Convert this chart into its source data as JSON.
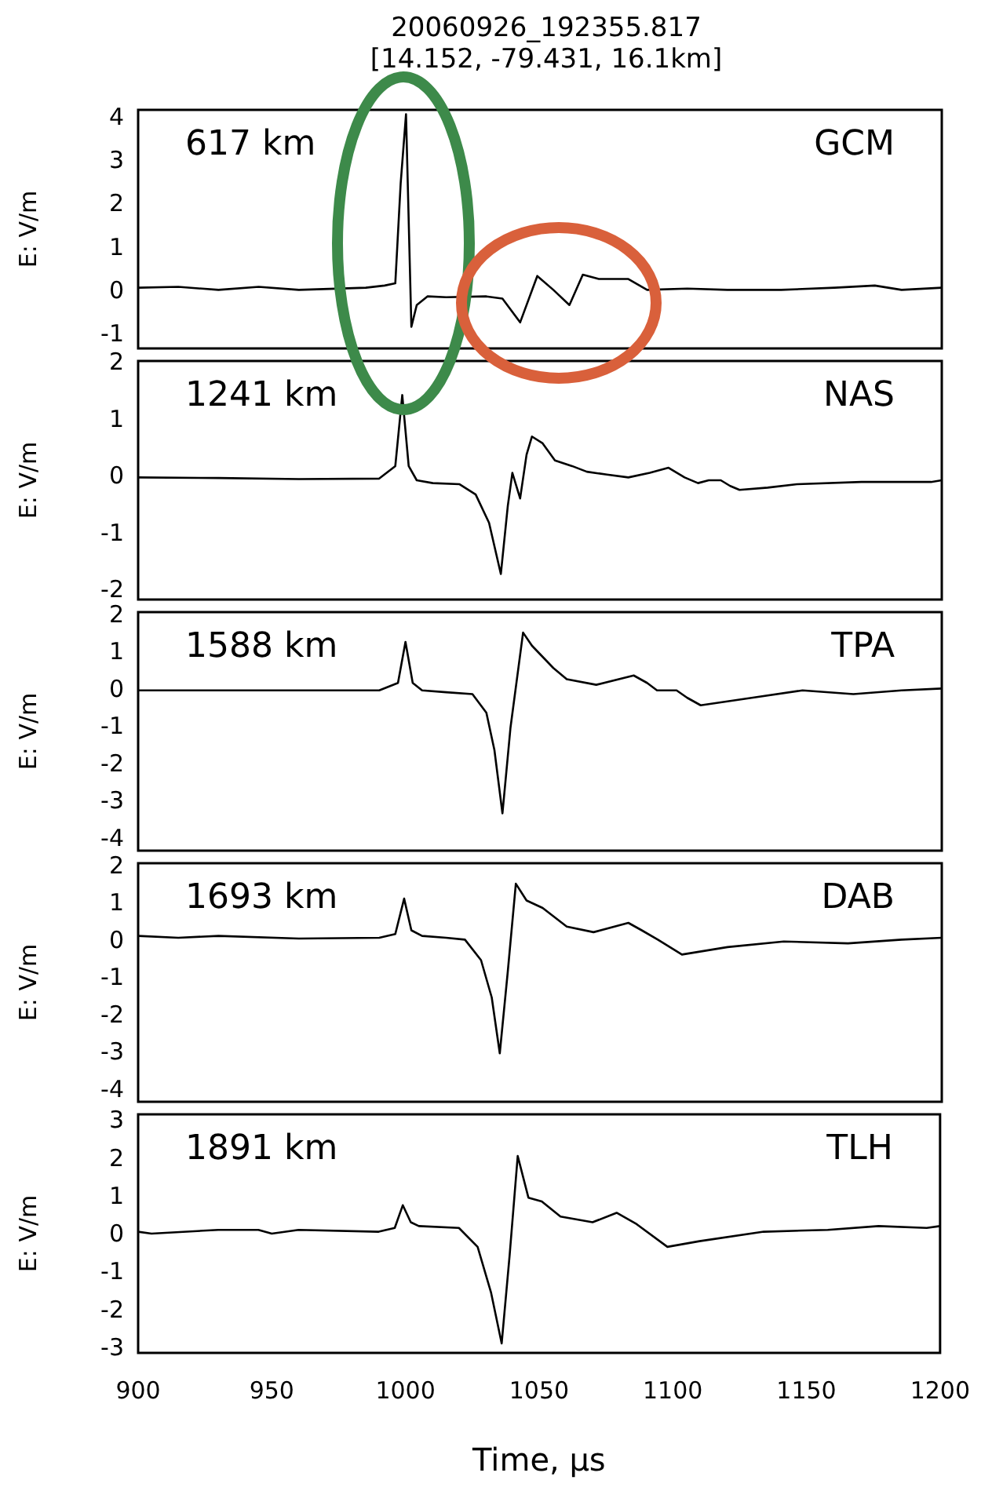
{
  "chart_data": [
    {
      "type": "line",
      "title": "20060926_192355.817",
      "subtitle": "[14.152, -79.431, 16.1km]",
      "ylabel": "E: V/m",
      "annotations": [
        "617 km",
        "GCM"
      ],
      "xlim": [
        900,
        1200
      ],
      "xticks": [
        900,
        950,
        1000,
        1050,
        1100,
        1150,
        1200
      ],
      "ylim": [
        -1.3,
        4.2
      ],
      "yticks": [
        -1,
        0,
        1,
        2,
        3,
        4
      ],
      "tick_labels": "y",
      "grid": false,
      "legend": false,
      "series": [
        {
          "color": "#000000",
          "x": [
            900,
            915,
            930,
            945,
            960,
            985,
            992,
            996,
            998,
            1000,
            1002,
            1004,
            1008,
            1015,
            1030,
            1036,
            1042.6,
            1049,
            1055,
            1061,
            1066,
            1072,
            1083,
            1090,
            1105,
            1120,
            1140,
            1160,
            1175,
            1185,
            1200
          ],
          "values": [
            0.1,
            0.12,
            0.05,
            0.12,
            0.05,
            0.1,
            0.15,
            0.2,
            2.5,
            4.1,
            -0.8,
            -0.3,
            -0.1,
            -0.12,
            -0.1,
            -0.15,
            -0.7,
            0.37,
            0.05,
            -0.3,
            0.4,
            0.3,
            0.3,
            0.05,
            0.08,
            0.05,
            0.05,
            0.1,
            0.15,
            0.05,
            0.1
          ]
        }
      ]
    },
    {
      "type": "line",
      "ylabel": "E: V/m",
      "annotations": [
        "1241 km",
        "NAS"
      ],
      "xlim": [
        900,
        1200
      ],
      "xticks": [
        900,
        950,
        1000,
        1050,
        1100,
        1150,
        1200
      ],
      "ylim": [
        -2.15,
        2.05
      ],
      "yticks": [
        -2,
        -1,
        0,
        1,
        2
      ],
      "tick_labels": "y",
      "grid": false,
      "legend": false,
      "series": [
        {
          "color": "#000000",
          "x": [
            900,
            930,
            960,
            990,
            996,
            998.6,
            1001,
            1004,
            1010,
            1020,
            1026,
            1031,
            1035.4,
            1038,
            1039.7,
            1042.6,
            1045,
            1047,
            1051,
            1055.6,
            1062,
            1067.5,
            1075,
            1083,
            1091,
            1098,
            1104,
            1109,
            1113,
            1117.5,
            1121,
            1124.5,
            1135,
            1146,
            1170,
            1196,
            1200
          ],
          "values": [
            0,
            -0.01,
            -0.03,
            -0.02,
            0.2,
            1.45,
            0.2,
            -0.05,
            -0.1,
            -0.12,
            -0.3,
            -0.8,
            -1.7,
            -0.5,
            0.08,
            -0.37,
            0.4,
            0.72,
            0.6,
            0.3,
            0.2,
            0.1,
            0.05,
            0.0,
            0.08,
            0.17,
            0.0,
            -0.1,
            -0.05,
            -0.05,
            -0.15,
            -0.22,
            -0.18,
            -0.12,
            -0.08,
            -0.08,
            -0.05
          ]
        }
      ]
    },
    {
      "type": "line",
      "ylabel": "E: V/m",
      "annotations": [
        "1588 km",
        "TPA"
      ],
      "xlim": [
        900,
        1200
      ],
      "xticks": [
        900,
        950,
        1000,
        1050,
        1100,
        1150,
        1200
      ],
      "ylim": [
        -4.3,
        2.1
      ],
      "yticks": [
        -4,
        -3,
        -2,
        -1,
        0,
        1,
        2
      ],
      "tick_labels": "y",
      "grid": false,
      "legend": false,
      "series": [
        {
          "color": "#000000",
          "x": [
            900,
            950,
            990,
            997,
            999.8,
            1002.5,
            1006,
            1015,
            1024.8,
            1030,
            1033,
            1036,
            1039,
            1043.7,
            1047,
            1051,
            1055,
            1060,
            1071,
            1085,
            1090,
            1093.7,
            1101,
            1105,
            1110,
            1129,
            1148,
            1167,
            1185,
            1200
          ],
          "values": [
            0,
            0,
            0,
            0.2,
            1.3,
            0.2,
            0.0,
            -0.05,
            -0.1,
            -0.6,
            -1.6,
            -3.3,
            -1.0,
            1.55,
            1.2,
            0.9,
            0.6,
            0.3,
            0.15,
            0.4,
            0.2,
            0.0,
            0.0,
            -0.2,
            -0.4,
            -0.2,
            0.0,
            -0.1,
            0.0,
            0.05
          ]
        }
      ]
    },
    {
      "type": "line",
      "ylabel": "E: V/m",
      "annotations": [
        "1693 km",
        "DAB"
      ],
      "xlim": [
        900,
        1200
      ],
      "xticks": [
        900,
        950,
        1000,
        1050,
        1100,
        1150,
        1200
      ],
      "ylim": [
        -4.3,
        2.1
      ],
      "yticks": [
        -4,
        -3,
        -2,
        -1,
        0,
        1,
        2
      ],
      "tick_labels": "y",
      "grid": false,
      "legend": false,
      "series": [
        {
          "color": "#000000",
          "x": [
            900,
            915,
            930,
            960,
            990,
            996,
            999.3,
            1002,
            1006,
            1015,
            1022,
            1028,
            1032,
            1035,
            1038,
            1041,
            1045,
            1051,
            1060,
            1070,
            1083,
            1088,
            1094,
            1103,
            1120,
            1141,
            1165,
            1185,
            1200
          ],
          "values": [
            0.15,
            0.1,
            0.15,
            0.08,
            0.1,
            0.2,
            1.15,
            0.3,
            0.15,
            0.1,
            0.05,
            -0.5,
            -1.5,
            -3.0,
            -0.8,
            1.55,
            1.1,
            0.9,
            0.4,
            0.25,
            0.5,
            0.3,
            0.05,
            -0.35,
            -0.15,
            0.0,
            -0.05,
            0.05,
            0.1
          ]
        }
      ]
    },
    {
      "type": "line",
      "xlabel": "Time, µs",
      "ylabel": "E: V/m",
      "annotations": [
        "1891 km",
        "TLH"
      ],
      "xlim": [
        900,
        1200
      ],
      "xticks": [
        900,
        950,
        1000,
        1050,
        1100,
        1150,
        1200
      ],
      "ylim": [
        -3.1,
        3.2
      ],
      "yticks": [
        -3,
        -2,
        -1,
        0,
        1,
        2,
        3
      ],
      "grid": false,
      "legend": false,
      "series": [
        {
          "color": "#000000",
          "x": [
            900,
            905,
            930,
            945,
            950,
            960,
            990,
            996,
            999,
            1002,
            1005,
            1020,
            1027,
            1032,
            1036,
            1039,
            1042,
            1046,
            1051,
            1058,
            1070,
            1079,
            1086.5,
            1098,
            1110,
            1134,
            1158,
            1177,
            1195,
            1200
          ],
          "values": [
            0.1,
            0.05,
            0.15,
            0.15,
            0.05,
            0.15,
            0.1,
            0.2,
            0.8,
            0.35,
            0.25,
            0.2,
            -0.3,
            -1.5,
            -2.85,
            -0.5,
            2.1,
            1.0,
            0.9,
            0.5,
            0.35,
            0.6,
            0.3,
            -0.3,
            -0.15,
            0.1,
            0.15,
            0.25,
            0.2,
            0.25
          ]
        }
      ]
    }
  ]
}
